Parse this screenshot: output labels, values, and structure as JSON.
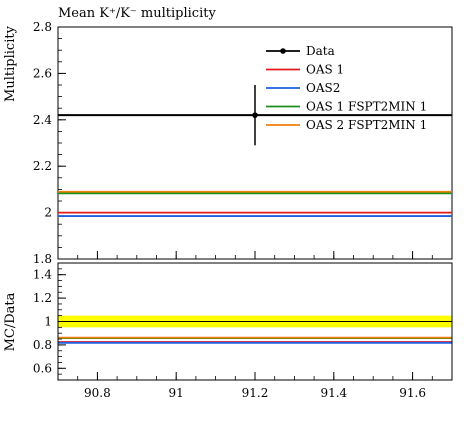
{
  "chart_data": {
    "type": "line",
    "title": "Mean K⁺/K⁻ multiplicity",
    "main_panel": {
      "ylabel": "Multiplicity",
      "xlim": [
        90.7,
        91.7
      ],
      "ylim": [
        1.8,
        2.8
      ],
      "yticks": [
        1.8,
        2.0,
        2.2,
        2.4,
        2.6,
        2.8
      ],
      "ytick_labels": [
        "1.8",
        "2",
        "2.2",
        "2.4",
        "2.6",
        "2.8"
      ],
      "data": {
        "name": "Data",
        "x": 91.2,
        "y": 2.42,
        "yerr": 0.13,
        "color": "#000000"
      },
      "series": [
        {
          "name": "OAS 1",
          "y": 2.0,
          "color": "#e41a1c"
        },
        {
          "name": "OAS2",
          "y": 1.985,
          "color": "#1f5fe0"
        },
        {
          "name": "OAS 1 FSPT2MIN 1",
          "y": 2.083,
          "color": "#1b8f1b"
        },
        {
          "name": "OAS 2 FSPT2MIN 1",
          "y": 2.09,
          "color": "#f07f0f"
        }
      ],
      "legend_position": "top-right"
    },
    "ratio_panel": {
      "ylabel": "MC/Data",
      "ylim": [
        0.5,
        1.5
      ],
      "yticks": [
        0.6,
        0.8,
        1.0,
        1.2,
        1.4
      ],
      "ytick_labels": [
        "0.6",
        "0.8",
        "1",
        "1.2",
        "1.4"
      ],
      "band": {
        "low": 0.95,
        "high": 1.05,
        "color": "#ffff00"
      },
      "series": [
        {
          "name": "OAS 1",
          "y": 0.825,
          "color": "#e41a1c"
        },
        {
          "name": "OAS2",
          "y": 0.818,
          "color": "#1f5fe0"
        },
        {
          "name": "OAS 1 FSPT2MIN 1",
          "y": 0.858,
          "color": "#1b8f1b"
        },
        {
          "name": "OAS 2 FSPT2MIN 1",
          "y": 0.862,
          "color": "#f07f0f"
        }
      ]
    },
    "xticks": [
      90.8,
      91.0,
      91.2,
      91.4,
      91.6
    ],
    "xtick_labels": [
      "90.8",
      "91",
      "91.2",
      "91.4",
      "91.6"
    ]
  }
}
